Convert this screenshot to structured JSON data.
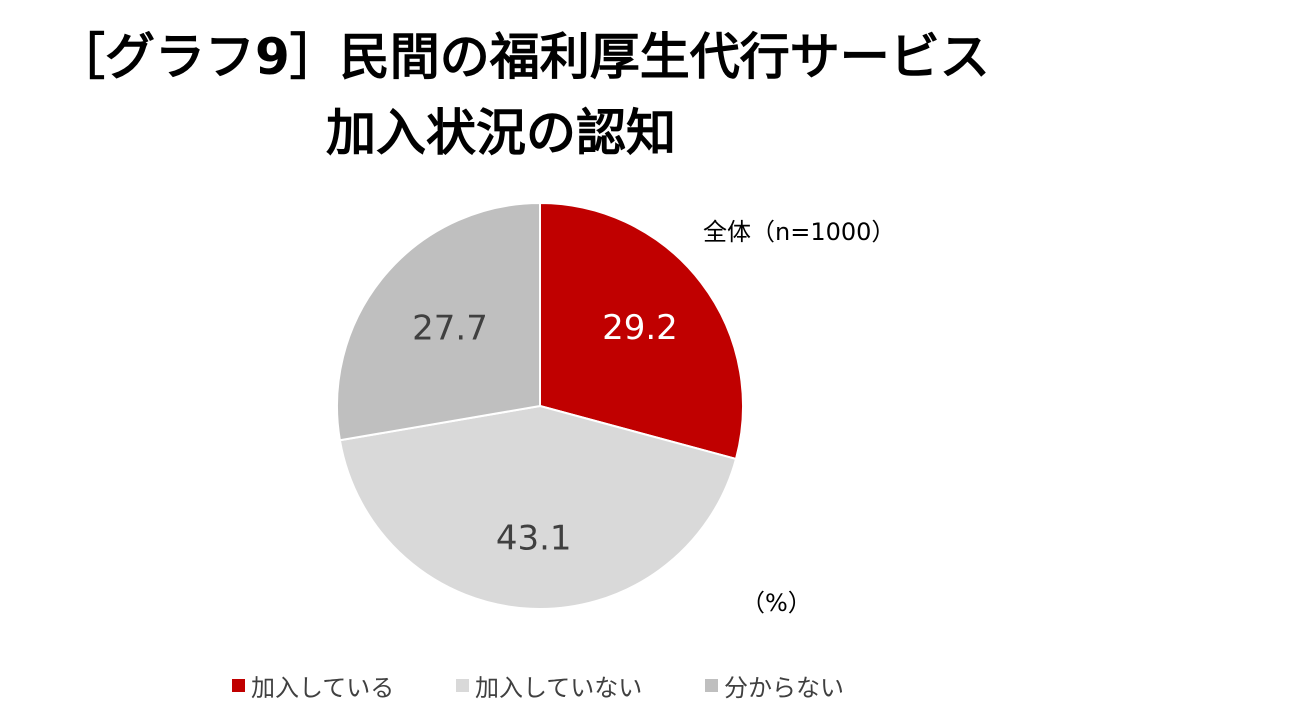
{
  "title": {
    "line1": "［グラフ9］民間の福利厚生代行サービス",
    "line2": "加入状況の認知"
  },
  "notes": {
    "sample": "全体（n=1000）",
    "unit": "（%）"
  },
  "chart_data": {
    "type": "pie",
    "start_angle_deg": 0,
    "direction": "clockwise",
    "categories": [
      "加入している",
      "加入していない",
      "分からない"
    ],
    "values": [
      29.2,
      43.1,
      27.7
    ],
    "colors": [
      "#C00000",
      "#D9D9D9",
      "#BFBFBF"
    ],
    "label_colors": [
      "#FFFFFF",
      "#404040",
      "#404040"
    ],
    "data_labels": [
      "29.2",
      "43.1",
      "27.7"
    ],
    "legend_position": "bottom",
    "unit": "%"
  }
}
